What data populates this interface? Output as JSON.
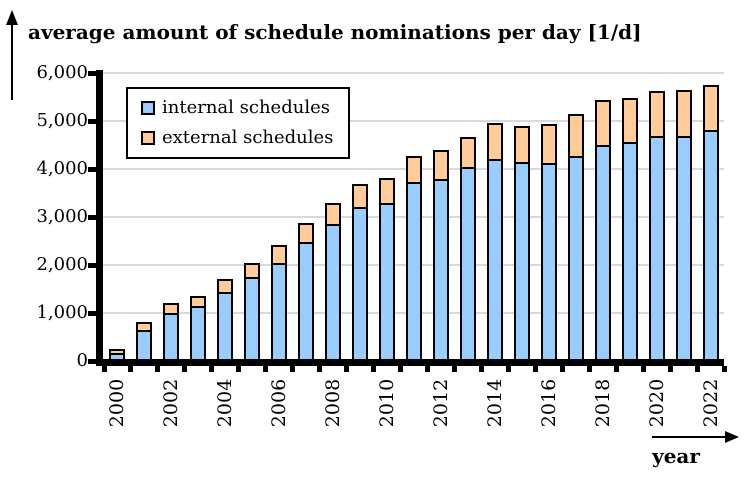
{
  "title": "average amount of schedule nominations per day [1/d]",
  "x_axis": {
    "label": "year",
    "shown_tick_labels": [
      "2000",
      "2002",
      "2004",
      "2006",
      "2008",
      "2010",
      "2012",
      "2014",
      "2016",
      "2018",
      "2020",
      "2022"
    ]
  },
  "y_axis": {
    "tick_labels": [
      "0",
      "1,000",
      "2,000",
      "3,000",
      "4,000",
      "5,000",
      "6,000"
    ],
    "min": 0,
    "max": 6000,
    "step": 1000
  },
  "legend": {
    "items": [
      "internal schedules",
      "external schedules"
    ]
  },
  "colors": {
    "internal_fill": "#99CCFF",
    "external_fill": "#FFCC99",
    "segment_border": "#000000",
    "gridline": "#D9D9D9",
    "axis": "#000000"
  },
  "chart_data": {
    "type": "bar",
    "stacked": true,
    "title": "average amount of schedule nominations per day [1/d]",
    "xlabel": "year",
    "ylabel": "average amount of schedule nominations per day [1/d]",
    "categories": [
      "2000",
      "2001",
      "2002",
      "2003",
      "2004",
      "2005",
      "2006",
      "2007",
      "2008",
      "2009",
      "2010",
      "2011",
      "2012",
      "2013",
      "2014",
      "2015",
      "2016",
      "2017",
      "2018",
      "2019",
      "2020",
      "2021",
      "2022"
    ],
    "series": [
      {
        "name": "internal schedules",
        "color": "#99CCFF",
        "values": [
          160,
          640,
          1000,
          1140,
          1430,
          1740,
          2040,
          2470,
          2850,
          3200,
          3290,
          3730,
          3800,
          4040,
          4210,
          4140,
          4130,
          4280,
          4490,
          4560,
          4690,
          4690,
          4820
        ]
      },
      {
        "name": "external schedules",
        "color": "#FFCC99",
        "values": [
          130,
          220,
          240,
          260,
          320,
          340,
          420,
          440,
          490,
          530,
          560,
          580,
          640,
          670,
          790,
          800,
          840,
          900,
          980,
          970,
          980,
          1000,
          980
        ]
      }
    ],
    "ylim": [
      0,
      6000
    ],
    "y_step": 1000,
    "grid": true,
    "gridlines": "horizontal_major",
    "legend_position": "inside-top-left",
    "x_tick_label_interval": 2,
    "x_label_rotation_deg": 90
  }
}
